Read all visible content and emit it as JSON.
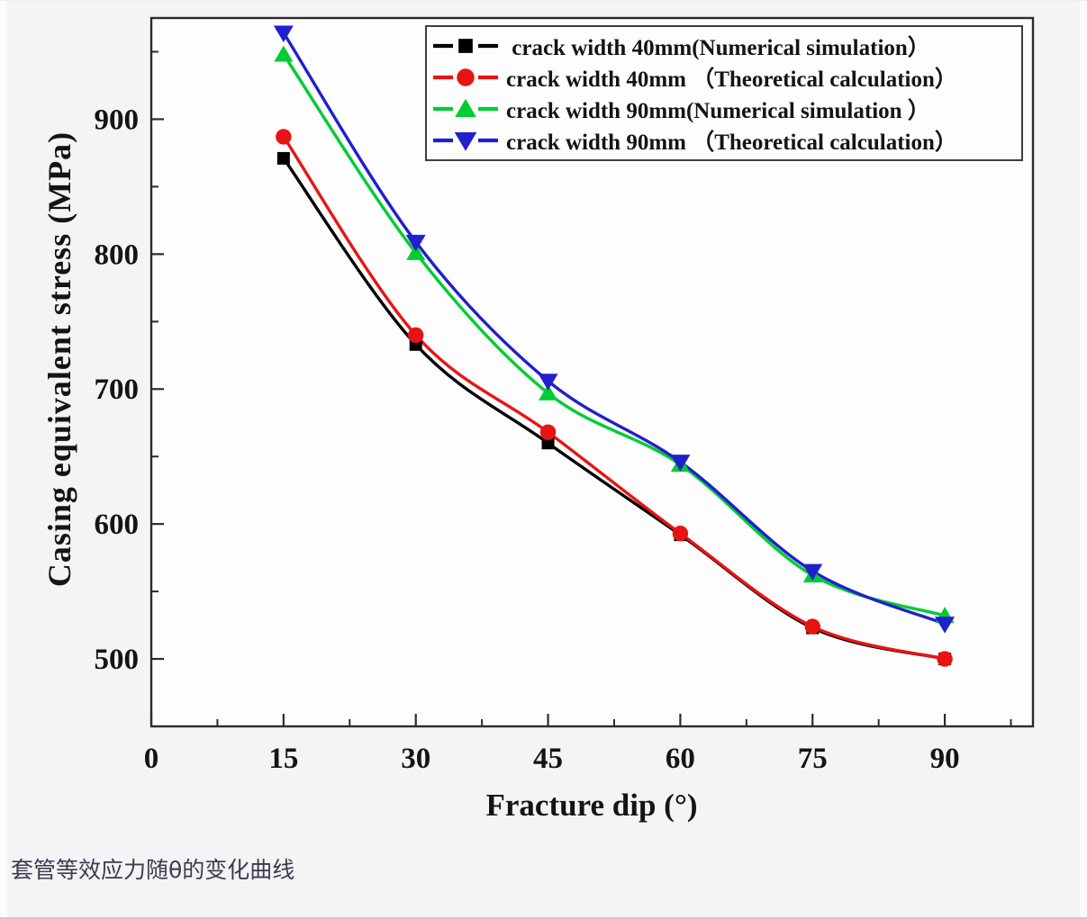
{
  "page": {
    "caption": "套管等效应力随θ的变化曲线",
    "background": "#f4f4f6",
    "plot_background": "#fdfdfe",
    "axis_color": "#2b2b2b"
  },
  "chart_data": {
    "type": "line",
    "title": "",
    "xlabel": "Fracture dip (°)",
    "ylabel": "Casing equivalent stress (MPa)",
    "x": [
      15,
      30,
      45,
      60,
      75,
      90
    ],
    "xlim": [
      0,
      100
    ],
    "ylim": [
      450,
      975
    ],
    "x_major_ticks": [
      0,
      15,
      30,
      45,
      60,
      75,
      90
    ],
    "x_minor_ticks": [
      7.5,
      22.5,
      37.5,
      52.5,
      67.5,
      82.5,
      97.5
    ],
    "y_major_ticks": [
      500,
      600,
      700,
      800,
      900
    ],
    "y_minor_ticks": [
      550,
      650,
      750,
      850,
      950
    ],
    "grid": false,
    "legend_position": "top-right-inside",
    "series": [
      {
        "name": " crack width 40mm(Numerical simulation）",
        "color": "#000000",
        "marker": "square",
        "values": [
          871,
          733,
          660,
          592,
          523,
          500
        ]
      },
      {
        "name": "crack width 40mm （Theoretical calculation）",
        "color": "#e81414",
        "marker": "circle",
        "values": [
          887,
          740,
          668,
          593,
          524,
          500
        ]
      },
      {
        "name": "crack width 90mm(Numerical simulation ）",
        "color": "#00cc33",
        "marker": "triangle-up",
        "values": [
          948,
          801,
          697,
          644,
          562,
          532
        ]
      },
      {
        "name": "crack width 90mm （Theoretical calculation）",
        "color": "#2020cc",
        "marker": "triangle-down",
        "values": [
          964,
          809,
          706,
          646,
          565,
          526
        ]
      }
    ]
  }
}
